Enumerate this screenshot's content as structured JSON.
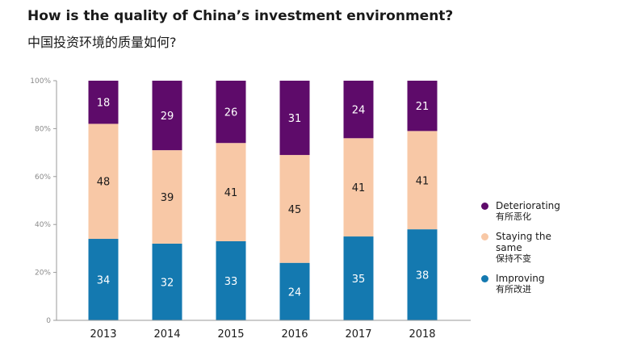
{
  "title": "How is the quality of China’s investment environment?",
  "subtitle": "中国投资环境的质量如何?",
  "chart_data": {
    "type": "bar",
    "stacked": true,
    "categories": [
      "2013",
      "2014",
      "2015",
      "2016",
      "2017",
      "2018"
    ],
    "series": [
      {
        "name": "Improving",
        "name_zh": "有所改进",
        "color": "#1479b0",
        "label_color": "#ffffff",
        "values": [
          34,
          32,
          33,
          24,
          35,
          38
        ]
      },
      {
        "name": "Staying the same",
        "name_zh": "保持不变",
        "color": "#f8c8a6",
        "label_color": "#1a1a1a",
        "values": [
          48,
          39,
          41,
          45,
          41,
          41
        ]
      },
      {
        "name": "Deteriorating",
        "name_zh": "有所恶化",
        "color": "#5e0b6a",
        "label_color": "#ffffff",
        "values": [
          18,
          29,
          26,
          31,
          24,
          21
        ]
      }
    ],
    "ylim": [
      0,
      100
    ],
    "yticks": [
      "0",
      "20%",
      "40%",
      "60%",
      "80%",
      "100%"
    ],
    "legend_position": "right",
    "grid": false
  }
}
